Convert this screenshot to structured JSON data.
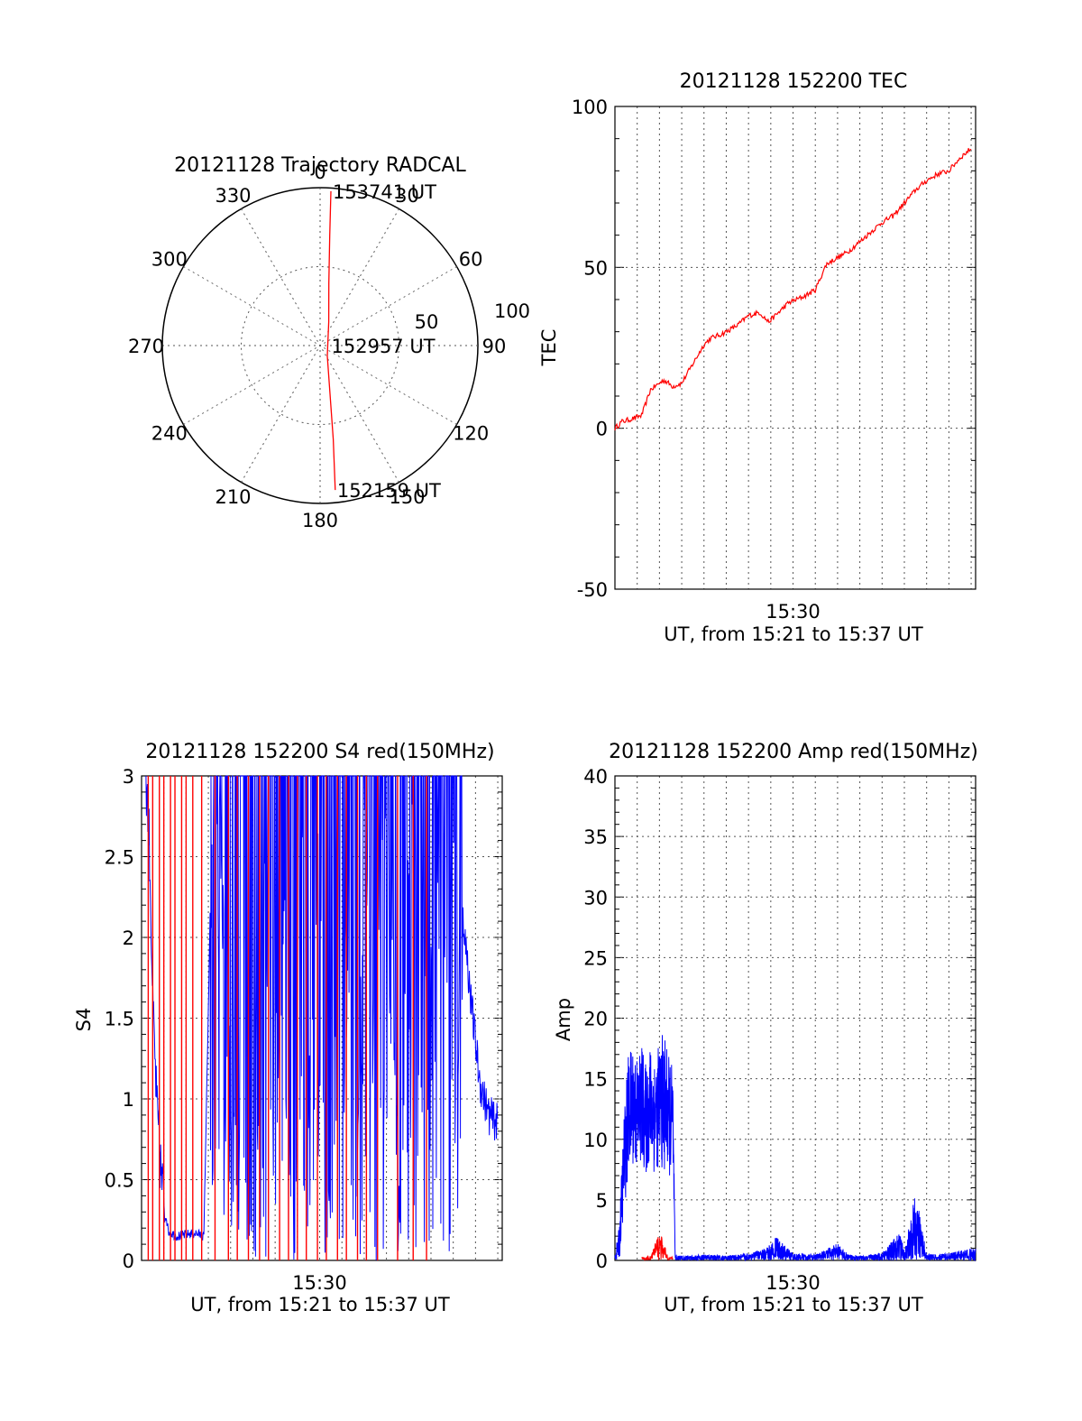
{
  "chart_data": [
    {
      "type": "polar",
      "title": "20121128 Trajectory RADCAL",
      "angle_labels": [
        "0",
        "30",
        "60",
        "90",
        "120",
        "150",
        "180",
        "210",
        "240",
        "270",
        "300",
        "330"
      ],
      "radius_labels": [
        "50",
        "100"
      ],
      "rlim": [
        0,
        100
      ],
      "grid": true,
      "series": [
        {
          "color": "#ff0000",
          "points": [
            {
              "az": 4,
              "r": 98
            },
            {
              "az": 5,
              "r": 70
            },
            {
              "az": 8,
              "r": 40
            },
            {
              "az": 20,
              "r": 16
            },
            {
              "az": 145,
              "r": 8
            },
            {
              "az": 172,
              "r": 60
            },
            {
              "az": 174,
              "r": 92
            }
          ]
        }
      ],
      "annotations": [
        {
          "text": "153741 UT",
          "az": 4,
          "r": 98
        },
        {
          "text": "152957 UT",
          "az": 90,
          "r": 6
        },
        {
          "text": "152159 UT",
          "az": 174,
          "r": 92
        }
      ]
    },
    {
      "type": "line",
      "title": "20121128 152200 TEC",
      "xlabel": "UT, from 15:21 to 15:37 UT",
      "ylabel": "TEC",
      "xlim": [
        0,
        16.2
      ],
      "ylim": [
        -50,
        100
      ],
      "yticks": [
        -50,
        0,
        50,
        100
      ],
      "xticks": [
        {
          "label": "15:30",
          "x": 8
        }
      ],
      "grid": true,
      "series": [
        {
          "color": "#ff0000",
          "x": [
            0,
            0.3,
            0.8,
            1.2,
            1.6,
            1.8,
            2.2,
            2.6,
            3.0,
            3.5,
            4.0,
            4.3,
            4.7,
            5.0,
            5.5,
            6.0,
            6.5,
            6.9,
            7.2,
            7.8,
            8.5,
            9.0,
            9.5,
            10.0,
            10.5,
            11.0,
            11.5,
            12.0,
            12.5,
            13.0,
            13.5,
            14.0,
            14.5,
            15.0,
            15.5,
            16.0
          ],
          "y": [
            0,
            2,
            3,
            4,
            12,
            13,
            15,
            13,
            14,
            20,
            26,
            28,
            29,
            30,
            32,
            35,
            36,
            33,
            35,
            39,
            41,
            43,
            51,
            53,
            55,
            58,
            61,
            64,
            66,
            70,
            74,
            77,
            79,
            80,
            84,
            87
          ]
        }
      ]
    },
    {
      "type": "line",
      "title": "20121128 152200 S4 red(150MHz)",
      "xlabel": "UT, from 15:21 to 15:37 UT",
      "ylabel": "S4",
      "xlim": [
        0,
        16.2
      ],
      "ylim": [
        0,
        3
      ],
      "yticks": [
        "0",
        "0.5",
        "1",
        "1.5",
        "2",
        "2.5",
        "3"
      ],
      "xticks": [
        {
          "label": "15:30",
          "x": 8
        }
      ],
      "grid": true,
      "series": [
        {
          "color": "#ff0000",
          "spikes": [
            0.3,
            0.5,
            0.8,
            1.0,
            1.3,
            1.5,
            1.8,
            2.0,
            2.3,
            2.7,
            3.3,
            3.9,
            4.3,
            4.8,
            5.3,
            5.7,
            6.2,
            6.6,
            7.0,
            7.4,
            7.9,
            8.3,
            8.8,
            9.2,
            9.7,
            10.1,
            10.6,
            11.5,
            12.2,
            12.8
          ]
        },
        {
          "color": "#0000ff",
          "x": [
            0.2,
            0.35,
            0.5,
            0.7,
            0.9,
            1.2,
            1.6,
            2.0,
            2.4,
            2.8,
            3.2,
            3.6,
            4.0,
            4.4,
            4.8,
            5.2,
            5.6,
            6.0,
            6.4,
            6.8,
            7.2,
            7.6,
            8.0,
            8.4,
            8.8,
            9.2,
            9.6,
            10.0,
            10.4,
            10.8,
            11.2,
            11.6,
            12.0,
            12.4,
            12.8,
            13.2,
            13.6,
            14.0,
            14.4,
            14.8,
            15.2,
            15.6,
            16.0
          ],
          "y": [
            3.0,
            2.6,
            1.6,
            0.9,
            0.5,
            0.18,
            0.15,
            0.16,
            0.17,
            0.15,
            3.0,
            2.8,
            1.2,
            3.0,
            0.6,
            2.4,
            3.0,
            1.8,
            3.0,
            0.5,
            2.9,
            1.4,
            3.0,
            0.5,
            3.0,
            2.2,
            0.4,
            3.0,
            1.6,
            3.0,
            2.7,
            0.3,
            3.0,
            2.9,
            2.5,
            3.0,
            2.8,
            3.0,
            2.2,
            1.6,
            1.1,
            0.9,
            0.85
          ]
        }
      ]
    },
    {
      "type": "line",
      "title": "20121128 152200 Amp red(150MHz)",
      "xlabel": "UT, from 15:21 to 15:37 UT",
      "ylabel": "Amp",
      "xlim": [
        0,
        16.2
      ],
      "ylim": [
        0,
        40
      ],
      "yticks": [
        "0",
        "5",
        "10",
        "15",
        "20",
        "25",
        "30",
        "35",
        "40"
      ],
      "xticks": [
        {
          "label": "15:30",
          "x": 8
        }
      ],
      "grid": true,
      "series": [
        {
          "color": "#0000ff",
          "x": [
            0.0,
            0.2,
            0.4,
            0.6,
            0.8,
            1.0,
            1.2,
            1.4,
            1.6,
            1.8,
            2.0,
            2.2,
            2.4,
            2.6,
            2.7,
            3.0,
            4.0,
            5.0,
            6.0,
            6.8,
            7.2,
            8.0,
            9.0,
            10.0,
            10.5,
            11.0,
            12.0,
            12.8,
            13.0,
            13.5,
            14.0,
            15.0,
            16.0
          ],
          "y": [
            0.5,
            3,
            12,
            17,
            18,
            17,
            18,
            16,
            18,
            17,
            18,
            19,
            17,
            16,
            0.5,
            0.4,
            0.5,
            0.4,
            0.6,
            1.0,
            2.0,
            0.6,
            0.5,
            1.4,
            0.5,
            0.4,
            0.6,
            2.4,
            0.7,
            5.8,
            0.5,
            0.6,
            1.0
          ],
          "band_low": [
            0,
            0,
            4,
            7,
            8,
            7,
            8,
            7,
            8,
            7,
            8,
            7,
            7,
            7,
            0,
            0,
            0,
            0,
            0,
            0,
            0,
            0,
            0,
            0,
            0,
            0,
            0,
            0,
            0,
            0,
            0,
            0,
            0
          ]
        },
        {
          "color": "#ff0000",
          "x": [
            1.2,
            1.6,
            2.0,
            2.4,
            2.6
          ],
          "y": [
            0.3,
            0.4,
            2.5,
            0.3,
            0.3
          ]
        }
      ]
    }
  ]
}
